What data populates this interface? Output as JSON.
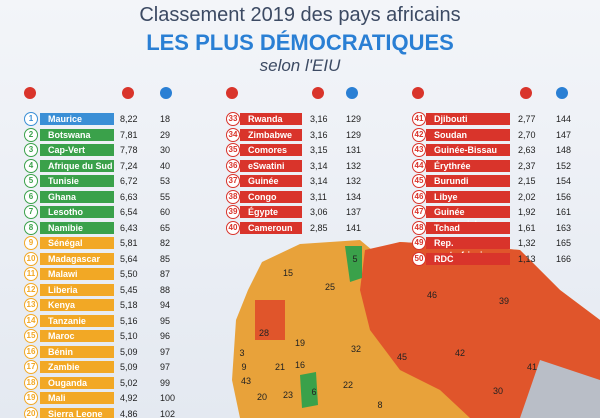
{
  "header": {
    "line1": "Classement 2019 des pays africains",
    "line2": "LES PLUS DÉMOCRATIQUES",
    "line3": "selon l'EIU"
  },
  "columns": [
    {
      "rows": [
        {
          "rank": 1,
          "country": "Maurice",
          "score": "8,22",
          "world_rank": 18,
          "color": "#3a8fd6"
        },
        {
          "rank": 2,
          "country": "Botswana",
          "score": "7,81",
          "world_rank": 29,
          "color": "#3aa14a"
        },
        {
          "rank": 3,
          "country": "Cap-Vert",
          "score": "7,78",
          "world_rank": 30,
          "color": "#3aa14a"
        },
        {
          "rank": 4,
          "country": "Afrique du Sud",
          "score": "7,24",
          "world_rank": 40,
          "color": "#3aa14a"
        },
        {
          "rank": 5,
          "country": "Tunisie",
          "score": "6,72",
          "world_rank": 53,
          "color": "#3aa14a"
        },
        {
          "rank": 6,
          "country": "Ghana",
          "score": "6,63",
          "world_rank": 55,
          "color": "#3aa14a"
        },
        {
          "rank": 7,
          "country": "Lesotho",
          "score": "6,54",
          "world_rank": 60,
          "color": "#3aa14a"
        },
        {
          "rank": 8,
          "country": "Namibie",
          "score": "6,43",
          "world_rank": 65,
          "color": "#3aa14a"
        },
        {
          "rank": 9,
          "country": "Sénégal",
          "score": "5,81",
          "world_rank": 82,
          "color": "#f2a825"
        },
        {
          "rank": 10,
          "country": "Madagascar",
          "score": "5,64",
          "world_rank": 85,
          "color": "#f2a825"
        },
        {
          "rank": 11,
          "country": "Malawi",
          "score": "5,50",
          "world_rank": 87,
          "color": "#f2a825"
        },
        {
          "rank": 12,
          "country": "Liberia",
          "score": "5,45",
          "world_rank": 88,
          "color": "#f2a825"
        },
        {
          "rank": 13,
          "country": "Kenya",
          "score": "5,18",
          "world_rank": 94,
          "color": "#f2a825"
        },
        {
          "rank": 14,
          "country": "Tanzanie",
          "score": "5,16",
          "world_rank": 95,
          "color": "#f2a825"
        },
        {
          "rank": 15,
          "country": "Maroc",
          "score": "5,10",
          "world_rank": 96,
          "color": "#f2a825"
        },
        {
          "rank": 16,
          "country": "Bénin",
          "score": "5,09",
          "world_rank": 97,
          "color": "#f2a825"
        },
        {
          "rank": 17,
          "country": "Zambie",
          "score": "5,09",
          "world_rank": 97,
          "color": "#f2a825"
        },
        {
          "rank": 18,
          "country": "Ouganda",
          "score": "5,02",
          "world_rank": 99,
          "color": "#f2a825"
        },
        {
          "rank": 19,
          "country": "Mali",
          "score": "4,92",
          "world_rank": 100,
          "color": "#f2a825"
        },
        {
          "rank": 20,
          "country": "Sierra Leone",
          "score": "4,86",
          "world_rank": 102,
          "color": "#f2a825"
        }
      ]
    },
    {
      "rows": [
        {
          "rank": 33,
          "country": "Rwanda",
          "score": "3,16",
          "world_rank": 129,
          "color": "#d9342b"
        },
        {
          "rank": 34,
          "country": "Zimbabwe",
          "score": "3,16",
          "world_rank": 129,
          "color": "#d9342b"
        },
        {
          "rank": 35,
          "country": "Comores",
          "score": "3,15",
          "world_rank": 131,
          "color": "#d9342b"
        },
        {
          "rank": 36,
          "country": "eSwatini",
          "score": "3,14",
          "world_rank": 132,
          "color": "#d9342b"
        },
        {
          "rank": 37,
          "country": "Guinée",
          "score": "3,14",
          "world_rank": 132,
          "color": "#d9342b"
        },
        {
          "rank": 38,
          "country": "Congo",
          "score": "3,11",
          "world_rank": 134,
          "color": "#d9342b"
        },
        {
          "rank": 39,
          "country": "Égypte",
          "score": "3,06",
          "world_rank": 137,
          "color": "#d9342b"
        },
        {
          "rank": 40,
          "country": "Cameroun",
          "score": "2,85",
          "world_rank": 141,
          "color": "#d9342b"
        }
      ]
    },
    {
      "rows": [
        {
          "rank": 41,
          "country": "Djibouti",
          "score": "2,77",
          "world_rank": 144,
          "color": "#d9342b"
        },
        {
          "rank": 42,
          "country": "Soudan",
          "score": "2,70",
          "world_rank": 147,
          "color": "#d9342b"
        },
        {
          "rank": 43,
          "country": "Guinée-Bissau",
          "score": "2,63",
          "world_rank": 148,
          "color": "#d9342b"
        },
        {
          "rank": 44,
          "country": "Érythrée",
          "score": "2,37",
          "world_rank": 152,
          "color": "#d9342b"
        },
        {
          "rank": 45,
          "country": "Burundi",
          "score": "2,15",
          "world_rank": 154,
          "color": "#d9342b"
        },
        {
          "rank": 46,
          "country": "Libye",
          "score": "2,02",
          "world_rank": 156,
          "color": "#d9342b"
        },
        {
          "rank": 47,
          "country": "Guinée équatoriale",
          "score": "1,92",
          "world_rank": 161,
          "color": "#d9342b"
        },
        {
          "rank": 48,
          "country": "Tchad",
          "score": "1,61",
          "world_rank": 163,
          "color": "#d9342b"
        },
        {
          "rank": 49,
          "country": "Rep. centrafricaine",
          "score": "1,32",
          "world_rank": 165,
          "color": "#d9342b"
        },
        {
          "rank": 50,
          "country": "RDC",
          "score": "1,13",
          "world_rank": 166,
          "color": "#d9342b"
        }
      ]
    }
  ],
  "map_labels": [
    "5",
    "15",
    "25",
    "46",
    "39",
    "28",
    "19",
    "32",
    "45",
    "42",
    "41",
    "30",
    "3",
    "9",
    "43",
    "21",
    "20",
    "16",
    "23",
    "6",
    "22",
    "8"
  ]
}
